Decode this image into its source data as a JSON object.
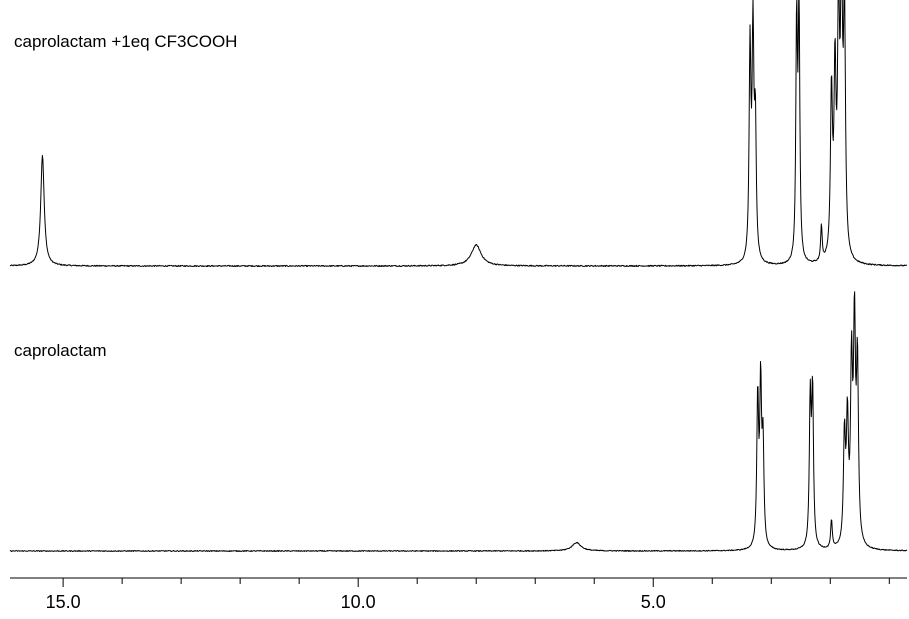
{
  "chart_data": {
    "type": "line",
    "x_axis": {
      "reversed": true,
      "xlim": [
        15.9,
        0.7
      ],
      "major_ticks": [
        15.0,
        10.0,
        5.0
      ],
      "major_tick_labels": [
        "15.0",
        "10.0",
        "5.0"
      ],
      "minor_step": 1.0,
      "xlabel": ""
    },
    "grid": false,
    "legend": "none",
    "series": [
      {
        "name": "caprolactam +1eq CF3COOH",
        "line_color": "#000000",
        "baseline": 0,
        "peaks": [
          {
            "x": 15.35,
            "height": 0.37,
            "width": 0.035
          },
          {
            "x": 8.0,
            "height": 0.07,
            "width": 0.1
          },
          {
            "x": 3.36,
            "height": 0.7,
            "width": 0.018
          },
          {
            "x": 3.31,
            "height": 0.74,
            "width": 0.018
          },
          {
            "x": 3.27,
            "height": 0.44,
            "width": 0.018
          },
          {
            "x": 2.57,
            "height": 0.8,
            "width": 0.016
          },
          {
            "x": 2.53,
            "height": 0.84,
            "width": 0.016
          },
          {
            "x": 2.15,
            "height": 0.12,
            "width": 0.015
          },
          {
            "x": 1.98,
            "height": 0.55,
            "width": 0.02
          },
          {
            "x": 1.92,
            "height": 0.6,
            "width": 0.02
          },
          {
            "x": 1.86,
            "height": 0.78,
            "width": 0.02
          },
          {
            "x": 1.81,
            "height": 0.88,
            "width": 0.02
          },
          {
            "x": 1.76,
            "height": 0.8,
            "width": 0.02
          }
        ]
      },
      {
        "name": "caprolactam",
        "line_color": "#000000",
        "baseline": 0,
        "peaks": [
          {
            "x": 6.3,
            "height": 0.035,
            "width": 0.09
          },
          {
            "x": 3.23,
            "height": 0.62,
            "width": 0.018
          },
          {
            "x": 3.18,
            "height": 0.66,
            "width": 0.018
          },
          {
            "x": 3.14,
            "height": 0.42,
            "width": 0.018
          },
          {
            "x": 2.34,
            "height": 0.6,
            "width": 0.018
          },
          {
            "x": 2.3,
            "height": 0.64,
            "width": 0.018
          },
          {
            "x": 1.98,
            "height": 0.12,
            "width": 0.016
          },
          {
            "x": 1.76,
            "height": 0.45,
            "width": 0.02
          },
          {
            "x": 1.71,
            "height": 0.5,
            "width": 0.02
          },
          {
            "x": 1.64,
            "height": 0.72,
            "width": 0.02
          },
          {
            "x": 1.59,
            "height": 0.88,
            "width": 0.02
          },
          {
            "x": 1.54,
            "height": 0.74,
            "width": 0.02
          }
        ]
      }
    ]
  }
}
